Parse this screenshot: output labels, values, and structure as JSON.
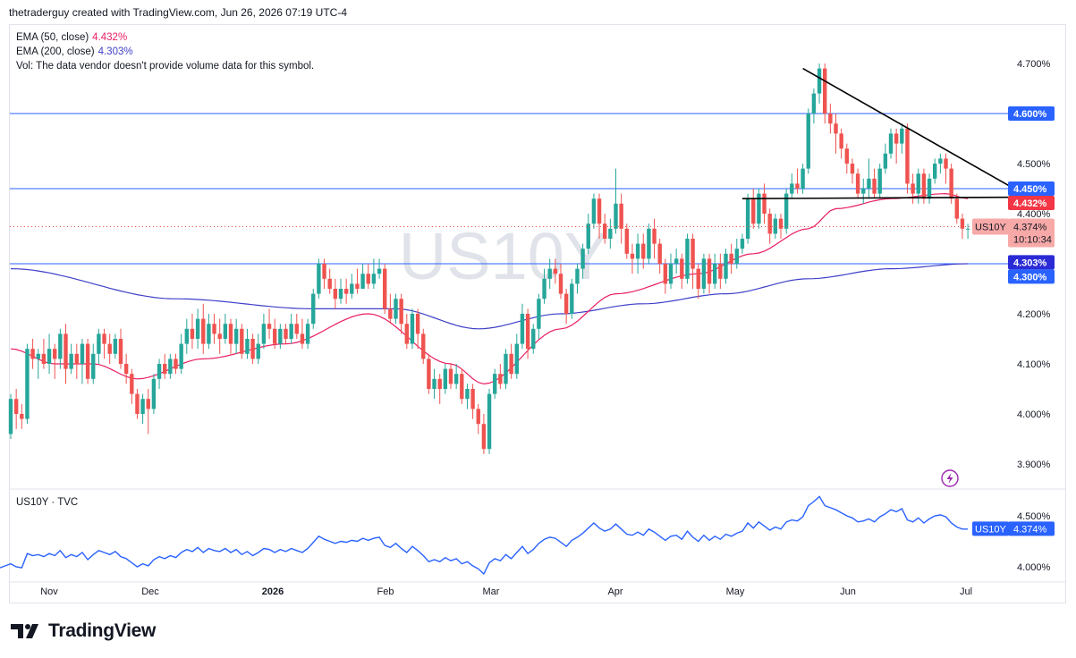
{
  "header": {
    "text": "thetraderguy created with TradingView.com, Jun 26, 2026 07:19 UTC-4"
  },
  "legend": {
    "ema50_label": "EMA (50, close)",
    "ema50_value": "4.432%",
    "ema200_label": "EMA (200, close)",
    "ema200_value": "4.303%",
    "vol_text": "Vol: The data vendor doesn't provide volume data for this symbol."
  },
  "watermark": "US10Y",
  "subpane": {
    "title": "US10Y · TVC"
  },
  "brand": {
    "name": "TradingView"
  },
  "colors": {
    "up": "#26a69a",
    "down": "#ef5350",
    "ema50": "#e91e63",
    "ema200": "#3f3fc8",
    "hline": "#2962ff",
    "trend": "#000000",
    "line": "#2962ff",
    "price_tag": "#f7a9a8",
    "level_tag": "#2962ff",
    "ema50_tag": "#f23645",
    "ema200_tag": "#2b2bd6"
  },
  "chart_data": [
    {
      "type": "candlestick",
      "symbol": "US10Y",
      "y_unit": "%",
      "ylim": [
        3.86,
        4.74
      ],
      "y_ticks": [
        "4.700%",
        "4.500%",
        "4.400%",
        "4.200%",
        "4.100%",
        "4.000%",
        "3.900%"
      ],
      "x_ticks": [
        "Nov",
        "Dec",
        "2026",
        "Feb",
        "Mar",
        "Apr",
        "May",
        "Jun",
        "Jul"
      ],
      "candles": [
        [
          3.96,
          4.03,
          4.04,
          3.95
        ],
        [
          4.03,
          4.0,
          4.05,
          3.97
        ],
        [
          4.0,
          3.99,
          4.02,
          3.97
        ],
        [
          3.99,
          4.13,
          4.14,
          3.98
        ],
        [
          4.13,
          4.11,
          4.15,
          4.09
        ],
        [
          4.11,
          4.12,
          4.13,
          4.07
        ],
        [
          4.12,
          4.1,
          4.15,
          4.09
        ],
        [
          4.1,
          4.13,
          4.16,
          4.08
        ],
        [
          4.13,
          4.11,
          4.14,
          4.07
        ],
        [
          4.11,
          4.16,
          4.17,
          4.09
        ],
        [
          4.16,
          4.09,
          4.18,
          4.06
        ],
        [
          4.09,
          4.12,
          4.14,
          4.08
        ],
        [
          4.12,
          4.1,
          4.14,
          4.07
        ],
        [
          4.1,
          4.14,
          4.15,
          4.06
        ],
        [
          4.14,
          4.07,
          4.15,
          4.06
        ],
        [
          4.07,
          4.12,
          4.14,
          4.06
        ],
        [
          4.12,
          4.16,
          4.17,
          4.1
        ],
        [
          4.16,
          4.14,
          4.17,
          4.11
        ],
        [
          4.14,
          4.12,
          4.16,
          4.1
        ],
        [
          4.12,
          4.15,
          4.16,
          4.11
        ],
        [
          4.15,
          4.1,
          4.17,
          4.09
        ],
        [
          4.1,
          4.08,
          4.12,
          4.06
        ],
        [
          4.08,
          4.04,
          4.09,
          4.02
        ],
        [
          4.04,
          4.0,
          4.05,
          3.99
        ],
        [
          4.0,
          4.03,
          4.04,
          3.98
        ],
        [
          4.03,
          4.01,
          4.05,
          3.96
        ],
        [
          4.01,
          4.07,
          4.08,
          4.0
        ],
        [
          4.07,
          4.1,
          4.11,
          4.05
        ],
        [
          4.1,
          4.08,
          4.12,
          4.07
        ],
        [
          4.08,
          4.11,
          4.12,
          4.07
        ],
        [
          4.11,
          4.09,
          4.12,
          4.08
        ],
        [
          4.09,
          4.14,
          4.16,
          4.08
        ],
        [
          4.14,
          4.17,
          4.19,
          4.12
        ],
        [
          4.17,
          4.15,
          4.2,
          4.13
        ],
        [
          4.15,
          4.19,
          4.21,
          4.13
        ],
        [
          4.19,
          4.14,
          4.22,
          4.12
        ],
        [
          4.14,
          4.18,
          4.2,
          4.13
        ],
        [
          4.18,
          4.16,
          4.2,
          4.14
        ],
        [
          4.16,
          4.15,
          4.19,
          4.12
        ],
        [
          4.15,
          4.18,
          4.2,
          4.14
        ],
        [
          4.18,
          4.14,
          4.19,
          4.12
        ],
        [
          4.14,
          4.17,
          4.19,
          4.12
        ],
        [
          4.17,
          4.12,
          4.18,
          4.11
        ],
        [
          4.12,
          4.15,
          4.17,
          4.11
        ],
        [
          4.15,
          4.11,
          4.16,
          4.1
        ],
        [
          4.11,
          4.14,
          4.16,
          4.1
        ],
        [
          4.14,
          4.18,
          4.2,
          4.13
        ],
        [
          4.18,
          4.17,
          4.21,
          4.15
        ],
        [
          4.17,
          4.14,
          4.19,
          4.13
        ],
        [
          4.14,
          4.17,
          4.18,
          4.13
        ],
        [
          4.17,
          4.15,
          4.18,
          4.14
        ],
        [
          4.15,
          4.18,
          4.2,
          4.14
        ],
        [
          4.18,
          4.16,
          4.2,
          4.15
        ],
        [
          4.16,
          4.14,
          4.19,
          4.13
        ],
        [
          4.14,
          4.18,
          4.19,
          4.13
        ],
        [
          4.18,
          4.24,
          4.25,
          4.17
        ],
        [
          4.24,
          4.3,
          4.31,
          4.23
        ],
        [
          4.3,
          4.27,
          4.31,
          4.25
        ],
        [
          4.27,
          4.25,
          4.29,
          4.24
        ],
        [
          4.25,
          4.23,
          4.27,
          4.21
        ],
        [
          4.23,
          4.25,
          4.27,
          4.22
        ],
        [
          4.25,
          4.24,
          4.27,
          4.22
        ],
        [
          4.24,
          4.26,
          4.28,
          4.23
        ],
        [
          4.26,
          4.25,
          4.29,
          4.24
        ],
        [
          4.25,
          4.28,
          4.3,
          4.25
        ],
        [
          4.28,
          4.26,
          4.3,
          4.25
        ],
        [
          4.26,
          4.28,
          4.31,
          4.25
        ],
        [
          4.28,
          4.29,
          4.31,
          4.27
        ],
        [
          4.29,
          4.21,
          4.3,
          4.2
        ],
        [
          4.21,
          4.19,
          4.24,
          4.18
        ],
        [
          4.19,
          4.23,
          4.24,
          4.18
        ],
        [
          4.23,
          4.18,
          4.24,
          4.16
        ],
        [
          4.18,
          4.14,
          4.2,
          4.13
        ],
        [
          4.14,
          4.2,
          4.21,
          4.13
        ],
        [
          4.2,
          4.16,
          4.21,
          4.13
        ],
        [
          4.16,
          4.11,
          4.17,
          4.1
        ],
        [
          4.11,
          4.05,
          4.12,
          4.04
        ],
        [
          4.05,
          4.07,
          4.09,
          4.03
        ],
        [
          4.07,
          4.05,
          4.08,
          4.02
        ],
        [
          4.05,
          4.09,
          4.1,
          4.04
        ],
        [
          4.09,
          4.06,
          4.1,
          4.05
        ],
        [
          4.06,
          4.08,
          4.1,
          4.05
        ],
        [
          4.08,
          4.03,
          4.09,
          4.02
        ],
        [
          4.03,
          4.05,
          4.06,
          4.01
        ],
        [
          4.05,
          4.01,
          4.06,
          3.99
        ],
        [
          4.01,
          3.98,
          4.02,
          3.96
        ],
        [
          3.98,
          3.93,
          4.0,
          3.92
        ],
        [
          3.93,
          4.04,
          4.05,
          3.92
        ],
        [
          4.04,
          4.08,
          4.09,
          4.03
        ],
        [
          4.08,
          4.06,
          4.1,
          4.05
        ],
        [
          4.06,
          4.12,
          4.13,
          4.05
        ],
        [
          4.12,
          4.08,
          4.14,
          4.07
        ],
        [
          4.08,
          4.14,
          4.16,
          4.07
        ],
        [
          4.14,
          4.2,
          4.22,
          4.13
        ],
        [
          4.2,
          4.13,
          4.21,
          4.11
        ],
        [
          4.13,
          4.17,
          4.18,
          4.12
        ],
        [
          4.17,
          4.23,
          4.24,
          4.15
        ],
        [
          4.23,
          4.27,
          4.29,
          4.22
        ],
        [
          4.27,
          4.29,
          4.31,
          4.25
        ],
        [
          4.29,
          4.28,
          4.31,
          4.26
        ],
        [
          4.28,
          4.24,
          4.3,
          4.23
        ],
        [
          4.24,
          4.2,
          4.25,
          4.18
        ],
        [
          4.2,
          4.26,
          4.27,
          4.19
        ],
        [
          4.26,
          4.29,
          4.3,
          4.24
        ],
        [
          4.29,
          4.33,
          4.34,
          4.27
        ],
        [
          4.33,
          4.38,
          4.4,
          4.32
        ],
        [
          4.38,
          4.43,
          4.44,
          4.37
        ],
        [
          4.43,
          4.38,
          4.44,
          4.35
        ],
        [
          4.38,
          4.35,
          4.4,
          4.34
        ],
        [
          4.35,
          4.37,
          4.39,
          4.33
        ],
        [
          4.37,
          4.42,
          4.49,
          4.36
        ],
        [
          4.42,
          4.37,
          4.44,
          4.34
        ],
        [
          4.37,
          4.32,
          4.38,
          4.31
        ],
        [
          4.32,
          4.31,
          4.34,
          4.28
        ],
        [
          4.31,
          4.34,
          4.36,
          4.28
        ],
        [
          4.34,
          4.31,
          4.36,
          4.29
        ],
        [
          4.31,
          4.37,
          4.38,
          4.3
        ],
        [
          4.37,
          4.34,
          4.39,
          4.31
        ],
        [
          4.34,
          4.3,
          4.35,
          4.28
        ],
        [
          4.3,
          4.26,
          4.31,
          4.24
        ],
        [
          4.26,
          4.3,
          4.32,
          4.25
        ],
        [
          4.3,
          4.31,
          4.33,
          4.28
        ],
        [
          4.31,
          4.27,
          4.32,
          4.25
        ],
        [
          4.27,
          4.35,
          4.36,
          4.26
        ],
        [
          4.35,
          4.29,
          4.36,
          4.25
        ],
        [
          4.29,
          4.25,
          4.3,
          4.23
        ],
        [
          4.25,
          4.31,
          4.32,
          4.24
        ],
        [
          4.31,
          4.26,
          4.32,
          4.24
        ],
        [
          4.26,
          4.3,
          4.32,
          4.25
        ],
        [
          4.3,
          4.27,
          4.32,
          4.25
        ],
        [
          4.27,
          4.32,
          4.33,
          4.26
        ],
        [
          4.32,
          4.3,
          4.34,
          4.28
        ],
        [
          4.3,
          4.33,
          4.35,
          4.29
        ],
        [
          4.33,
          4.35,
          4.36,
          4.32
        ],
        [
          4.35,
          4.43,
          4.44,
          4.34
        ],
        [
          4.43,
          4.38,
          4.45,
          4.37
        ],
        [
          4.38,
          4.44,
          4.45,
          4.37
        ],
        [
          4.44,
          4.4,
          4.46,
          4.38
        ],
        [
          4.4,
          4.36,
          4.41,
          4.34
        ],
        [
          4.36,
          4.39,
          4.4,
          4.35
        ],
        [
          4.39,
          4.37,
          4.4,
          4.35
        ],
        [
          4.37,
          4.44,
          4.45,
          4.36
        ],
        [
          4.44,
          4.46,
          4.48,
          4.43
        ],
        [
          4.46,
          4.45,
          4.49,
          4.44
        ],
        [
          4.45,
          4.49,
          4.5,
          4.44
        ],
        [
          4.49,
          4.6,
          4.61,
          4.48
        ],
        [
          4.6,
          4.64,
          4.65,
          4.58
        ],
        [
          4.64,
          4.69,
          4.7,
          4.62
        ],
        [
          4.69,
          4.6,
          4.7,
          4.58
        ],
        [
          4.6,
          4.58,
          4.62,
          4.56
        ],
        [
          4.58,
          4.56,
          4.6,
          4.52
        ],
        [
          4.56,
          4.53,
          4.57,
          4.51
        ],
        [
          4.53,
          4.5,
          4.54,
          4.48
        ],
        [
          4.5,
          4.48,
          4.51,
          4.46
        ],
        [
          4.48,
          4.44,
          4.49,
          4.43
        ],
        [
          4.44,
          4.45,
          4.47,
          4.42
        ],
        [
          4.45,
          4.47,
          4.51,
          4.43
        ],
        [
          4.47,
          4.44,
          4.49,
          4.43
        ],
        [
          4.44,
          4.49,
          4.5,
          4.43
        ],
        [
          4.49,
          4.52,
          4.54,
          4.48
        ],
        [
          4.52,
          4.56,
          4.57,
          4.51
        ],
        [
          4.56,
          4.54,
          4.57,
          4.5
        ],
        [
          4.54,
          4.57,
          4.58,
          4.52
        ],
        [
          4.57,
          4.46,
          4.58,
          4.44
        ],
        [
          4.46,
          4.44,
          4.48,
          4.42
        ],
        [
          4.44,
          4.48,
          4.49,
          4.42
        ],
        [
          4.48,
          4.43,
          4.49,
          4.42
        ],
        [
          4.43,
          4.47,
          4.48,
          4.42
        ],
        [
          4.47,
          4.5,
          4.51,
          4.46
        ],
        [
          4.5,
          4.51,
          4.52,
          4.48
        ],
        [
          4.51,
          4.49,
          4.52,
          4.46
        ],
        [
          4.49,
          4.43,
          4.5,
          4.42
        ],
        [
          4.43,
          4.39,
          4.44,
          4.38
        ],
        [
          4.39,
          4.37,
          4.4,
          4.35
        ],
        [
          4.37,
          4.37,
          4.38,
          4.35
        ]
      ],
      "ema50": [
        [
          0,
          4.13
        ],
        [
          8,
          4.1
        ],
        [
          15,
          4.1
        ],
        [
          23,
          4.07
        ],
        [
          35,
          4.11
        ],
        [
          50,
          4.14
        ],
        [
          65,
          4.2
        ],
        [
          80,
          4.1
        ],
        [
          86,
          4.06
        ],
        [
          100,
          4.17
        ],
        [
          110,
          4.24
        ],
        [
          125,
          4.28
        ],
        [
          135,
          4.32
        ],
        [
          145,
          4.37
        ],
        [
          150,
          4.41
        ],
        [
          160,
          4.43
        ],
        [
          170,
          4.44
        ],
        [
          174,
          4.43
        ]
      ],
      "ema200": [
        [
          0,
          4.29
        ],
        [
          30,
          4.23
        ],
        [
          55,
          4.21
        ],
        [
          70,
          4.21
        ],
        [
          85,
          4.17
        ],
        [
          100,
          4.2
        ],
        [
          115,
          4.22
        ],
        [
          130,
          4.24
        ],
        [
          145,
          4.27
        ],
        [
          160,
          4.29
        ],
        [
          174,
          4.3
        ]
      ],
      "horizontal_levels": [
        4.6,
        4.45,
        4.3
      ],
      "trendlines": [
        {
          "from": [
            144,
            4.69
          ],
          "to": [
            184,
            4.44
          ]
        },
        {
          "from": [
            133,
            4.43
          ],
          "to": [
            184,
            4.433
          ]
        }
      ],
      "last_price": "4.374%",
      "countdown": "10:10:34",
      "price_tag_label": "US10Y",
      "axis_tags": [
        "4.600%",
        "4.450%",
        "4.432%",
        "4.303%",
        "4.300%"
      ]
    },
    {
      "type": "line",
      "symbol": "US10Y",
      "ylim": [
        3.84,
        4.66
      ],
      "y_ticks": [
        "4.500%",
        "4.000%"
      ]
    }
  ]
}
